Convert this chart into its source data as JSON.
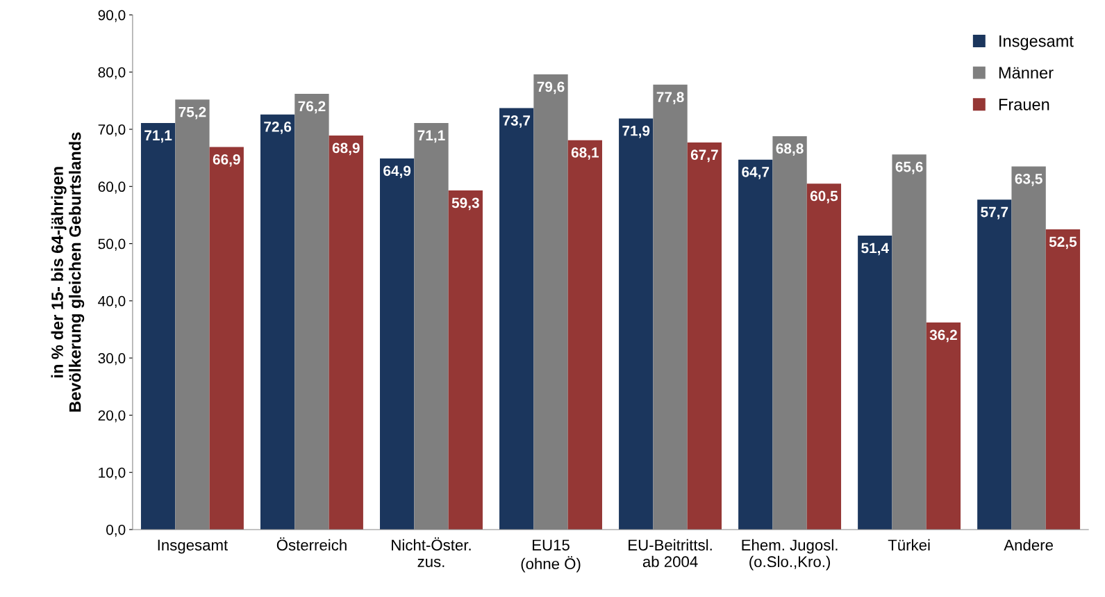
{
  "chart_data": {
    "type": "bar",
    "ylabel": "in % der 15- bis 64-jährigen\nBevölkerung gleichen Geburtslands",
    "categories": [
      "Insgesamt",
      "Österreich",
      "Nicht-Öster.\nzus.",
      "EU15\n(ohne Ö)",
      "EU-Beitrittsl.\nab 2004",
      "Ehem. Jugosl.\n(o.Slo.,Kro.)",
      "Türkei",
      "Andere"
    ],
    "series": [
      {
        "name": "Insgesamt",
        "color": "#1b365d",
        "values": [
          71.1,
          72.6,
          64.9,
          73.7,
          71.9,
          64.7,
          51.4,
          57.7
        ],
        "value_labels": [
          "71,1",
          "72,6",
          "64,9",
          "73,7",
          "71,9",
          "64,7",
          "51,4",
          "57,7"
        ]
      },
      {
        "name": "Männer",
        "color": "#7f7f7f",
        "values": [
          75.2,
          76.2,
          71.1,
          79.6,
          77.8,
          68.8,
          65.6,
          63.5
        ],
        "value_labels": [
          "75,2",
          "76,2",
          "71,1",
          "79,6",
          "77,8",
          "68,8",
          "65,6",
          "63,5"
        ]
      },
      {
        "name": "Frauen",
        "color": "#953735",
        "values": [
          66.9,
          68.9,
          59.3,
          68.1,
          67.7,
          60.5,
          36.2,
          52.5
        ],
        "value_labels": [
          "66,9",
          "68,9",
          "59,3",
          "68,1",
          "67,7",
          "60,5",
          "36,2",
          "52,5"
        ]
      }
    ],
    "ylim": [
      0,
      90
    ],
    "yticks": [
      {
        "value": 0,
        "label": "0,0"
      },
      {
        "value": 10,
        "label": "10,0"
      },
      {
        "value": 20,
        "label": "20,0"
      },
      {
        "value": 30,
        "label": "30,0"
      },
      {
        "value": 40,
        "label": "40,0"
      },
      {
        "value": 50,
        "label": "50,0"
      },
      {
        "value": 60,
        "label": "60,0"
      },
      {
        "value": 70,
        "label": "70,0"
      },
      {
        "value": 80,
        "label": "80,0"
      },
      {
        "value": 90,
        "label": "90,0"
      }
    ],
    "grid": false,
    "legend": "top right"
  }
}
